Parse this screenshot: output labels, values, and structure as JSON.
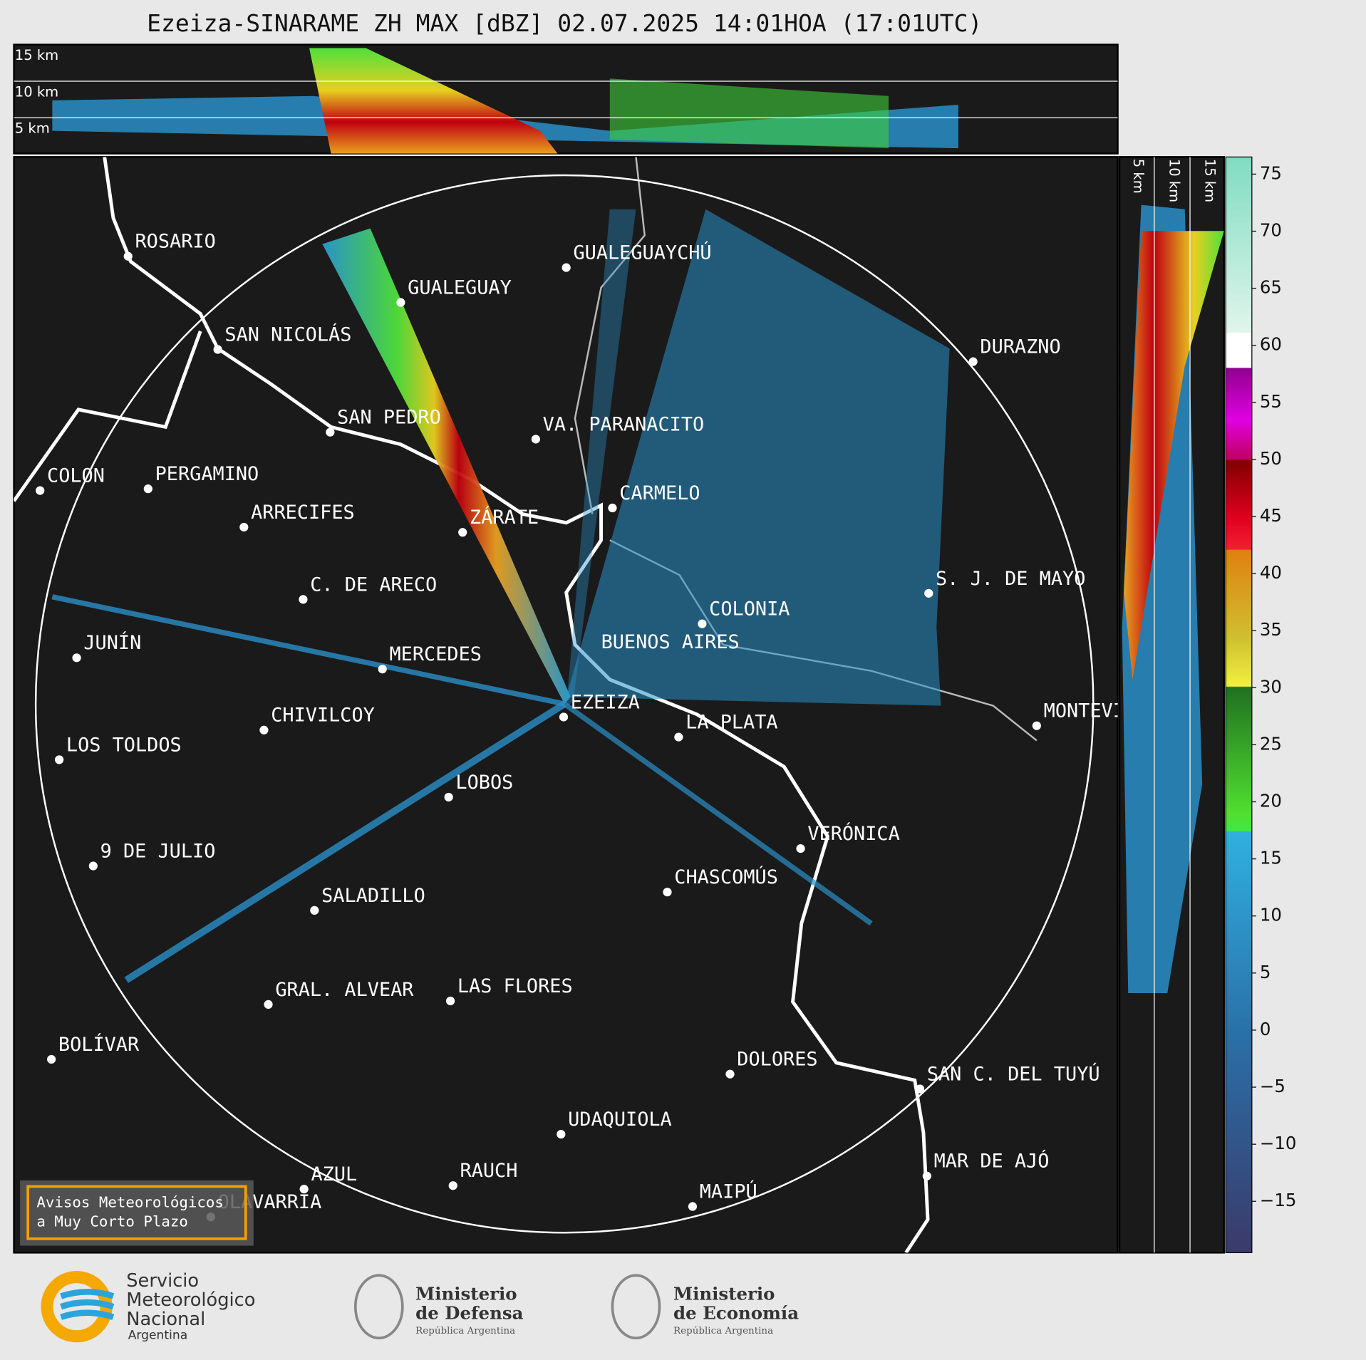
{
  "title": "Ezeiza-SINARAME ZH MAX [dBZ] 02.07.2025 14:01HOA (17:01UTC)",
  "height_labels_top": [
    "15 km",
    "10 km",
    "5 km"
  ],
  "height_labels_side": [
    "5 km",
    "10 km",
    "15 km"
  ],
  "cities": [
    "ROSARIO",
    "GUALEGUAYCHÚ",
    "GUALEGUAY",
    "SAN NICOLÁS",
    "DURAZNO",
    "SAN PEDRO",
    "VA. PARANACITO",
    "COLON",
    "PERGAMINO",
    "CARMELO",
    "ARRECIFES",
    "ZÁRATE",
    "C. DE ARECO",
    "S. J. DE MAYO",
    "COLONIA",
    "BUENOS AIRES",
    "JUNÍN",
    "MERCEDES",
    "EZEIZA",
    "MONTEVIDEO",
    "CHIVILCOY",
    "LA PLATA",
    "LOS TOLDOS",
    "LOBOS",
    "VERÓNICA",
    "9 DE JULIO",
    "CHASCOMÚS",
    "SALADILLO",
    "GRAL. ALVEAR",
    "LAS FLORES",
    "BOLÍVAR",
    "DOLORES",
    "SAN C. DEL TUYÚ",
    "UDAQUIOLA",
    "MAR DE AJÓ",
    "AZUL",
    "RAUCH",
    "MAIPÚ",
    "OLAVARRÍA"
  ],
  "colorbar": {
    "range": [
      -19.5,
      76.5
    ],
    "ticks": [
      75,
      70,
      65,
      60,
      55,
      50,
      45,
      40,
      35,
      30,
      25,
      20,
      15,
      10,
      5,
      0,
      {
        "value": -5,
        "label": "−5"
      },
      {
        "value": -10,
        "label": "−10"
      },
      {
        "value": -15,
        "label": "−15"
      }
    ]
  },
  "warning": [
    "Avisos Meteorológicos",
    "a Muy Corto Plazo"
  ],
  "logos": {
    "smn": [
      "Servicio",
      "Meteorológico",
      "Nacional",
      "Argentina"
    ],
    "defensa": [
      "Ministerio",
      "de Defensa",
      "República Argentina"
    ],
    "economia": [
      "Ministerio",
      "de Economía",
      "República Argentina"
    ]
  }
}
